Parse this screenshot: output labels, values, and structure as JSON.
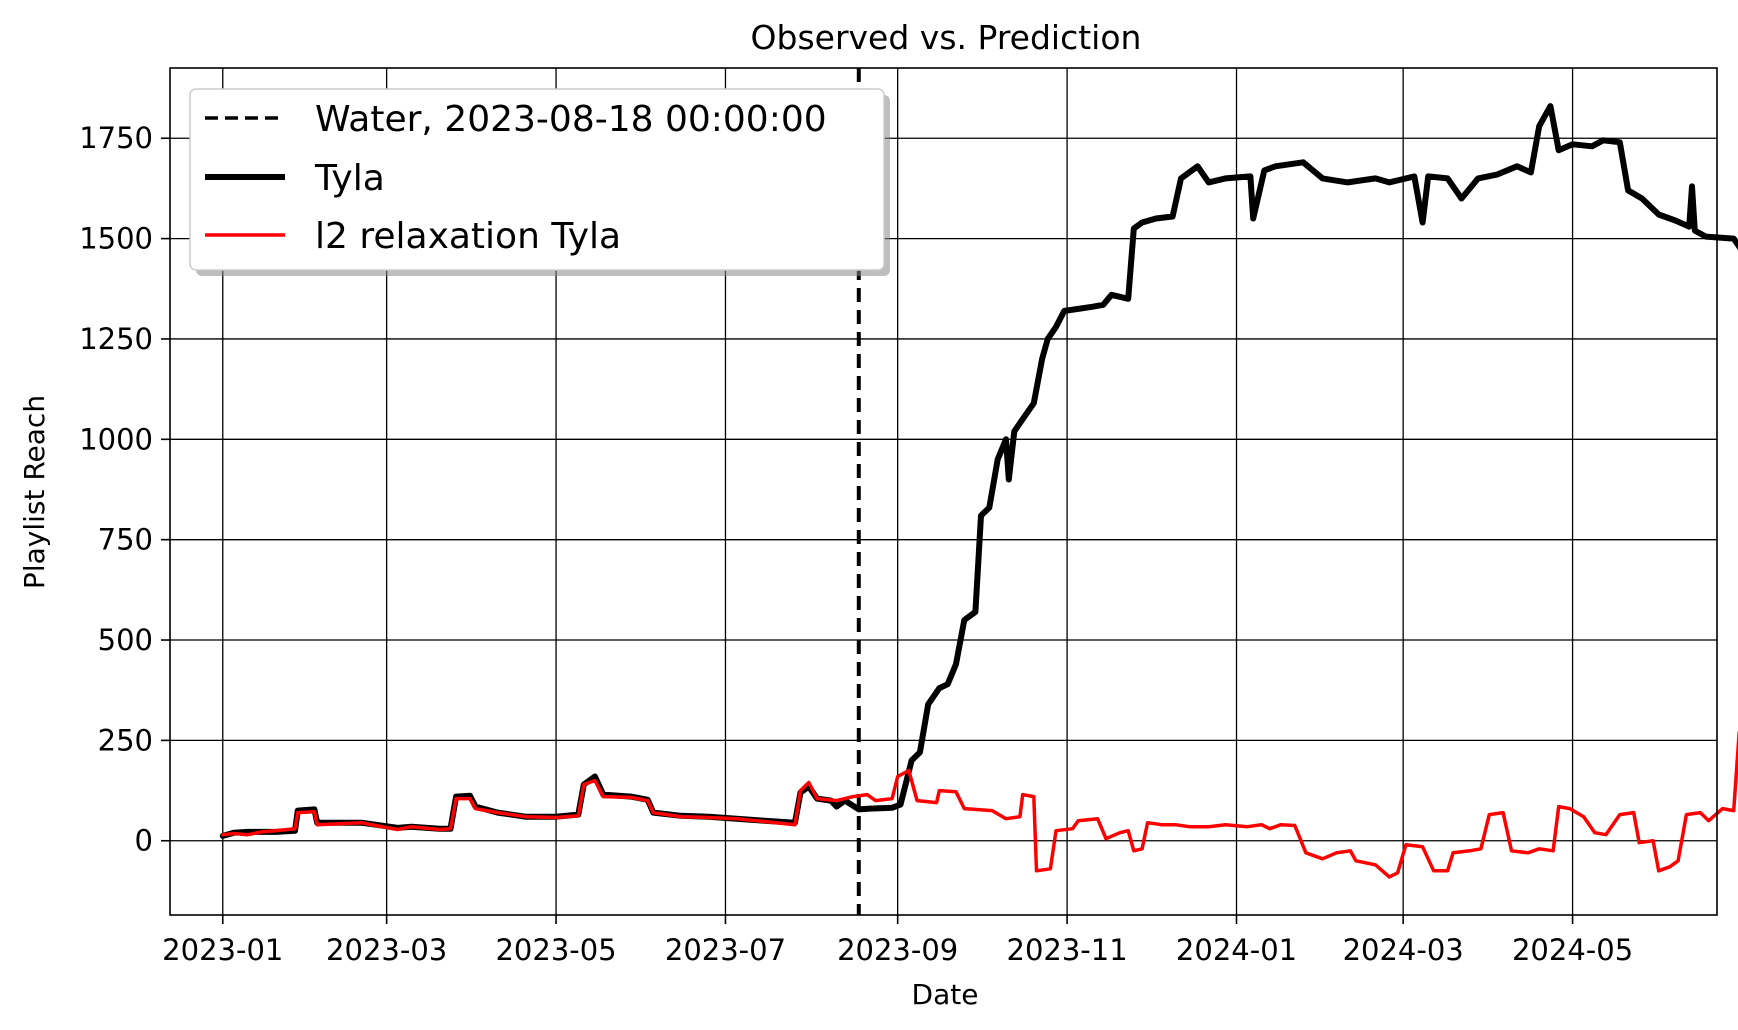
{
  "chart_data": {
    "type": "line",
    "title": "Observed vs. Prediction",
    "xlabel": "Date",
    "ylabel": "Playlist Reach",
    "xlim": [
      "2022-12-13",
      "2024-06-22"
    ],
    "ylim": [
      -185,
      1925
    ],
    "x_ticks": [
      "2023-01-01",
      "2023-03-01",
      "2023-05-01",
      "2023-07-01",
      "2023-09-01",
      "2023-11-01",
      "2024-01-01",
      "2024-03-01",
      "2024-05-01"
    ],
    "x_tick_labels": [
      "2023-01",
      "2023-03",
      "2023-05",
      "2023-07",
      "2023-09",
      "2023-11",
      "2024-01",
      "2024-03",
      "2024-05"
    ],
    "y_ticks": [
      0,
      250,
      500,
      750,
      1000,
      1250,
      1500,
      1750
    ],
    "y_tick_labels": [
      "0",
      "250",
      "500",
      "750",
      "1000",
      "1250",
      "1500",
      "1750"
    ],
    "grid": true,
    "legend_position": "top-left",
    "vline": {
      "name": "Water, 2023-08-18 00:00:00",
      "date": "2023-08-18",
      "color": "#000000",
      "style": "dashed"
    },
    "series": [
      {
        "name": "Tyla",
        "color": "#000000",
        "points": [
          [
            "2023-01-01",
            12
          ],
          [
            "2023-01-05",
            20
          ],
          [
            "2023-01-10",
            22
          ],
          [
            "2023-01-20",
            22
          ],
          [
            "2023-01-27",
            25
          ],
          [
            "2023-01-28",
            75
          ],
          [
            "2023-02-03",
            78
          ],
          [
            "2023-02-04",
            45
          ],
          [
            "2023-02-20",
            45
          ],
          [
            "2023-02-25",
            40
          ],
          [
            "2023-03-05",
            32
          ],
          [
            "2023-03-10",
            35
          ],
          [
            "2023-03-20",
            30
          ],
          [
            "2023-03-24",
            30
          ],
          [
            "2023-03-26",
            110
          ],
          [
            "2023-03-31",
            112
          ],
          [
            "2023-04-02",
            85
          ],
          [
            "2023-04-10",
            70
          ],
          [
            "2023-04-20",
            60
          ],
          [
            "2023-05-01",
            60
          ],
          [
            "2023-05-09",
            65
          ],
          [
            "2023-05-11",
            140
          ],
          [
            "2023-05-15",
            160
          ],
          [
            "2023-05-18",
            115
          ],
          [
            "2023-05-28",
            110
          ],
          [
            "2023-06-03",
            102
          ],
          [
            "2023-06-05",
            70
          ],
          [
            "2023-06-15",
            62
          ],
          [
            "2023-06-25",
            60
          ],
          [
            "2023-07-05",
            55
          ],
          [
            "2023-07-15",
            50
          ],
          [
            "2023-07-26",
            45
          ],
          [
            "2023-07-28",
            120
          ],
          [
            "2023-07-31",
            135
          ],
          [
            "2023-08-03",
            105
          ],
          [
            "2023-08-08",
            100
          ],
          [
            "2023-08-10",
            85
          ],
          [
            "2023-08-13",
            100
          ],
          [
            "2023-08-18",
            78
          ],
          [
            "2023-08-22",
            80
          ],
          [
            "2023-08-30",
            82
          ],
          [
            "2023-09-02",
            90
          ],
          [
            "2023-09-06",
            200
          ],
          [
            "2023-09-09",
            220
          ],
          [
            "2023-09-12",
            340
          ],
          [
            "2023-09-16",
            380
          ],
          [
            "2023-09-19",
            390
          ],
          [
            "2023-09-22",
            440
          ],
          [
            "2023-09-25",
            550
          ],
          [
            "2023-09-29",
            570
          ],
          [
            "2023-10-01",
            810
          ],
          [
            "2023-10-04",
            830
          ],
          [
            "2023-10-07",
            950
          ],
          [
            "2023-10-10",
            1000
          ],
          [
            "2023-10-11",
            900
          ],
          [
            "2023-10-13",
            1020
          ],
          [
            "2023-10-17",
            1060
          ],
          [
            "2023-10-20",
            1090
          ],
          [
            "2023-10-23",
            1200
          ],
          [
            "2023-10-25",
            1250
          ],
          [
            "2023-10-28",
            1280
          ],
          [
            "2023-10-31",
            1320
          ],
          [
            "2023-11-05",
            1325
          ],
          [
            "2023-11-10",
            1330
          ],
          [
            "2023-11-14",
            1335
          ],
          [
            "2023-11-17",
            1360
          ],
          [
            "2023-11-23",
            1350
          ],
          [
            "2023-11-25",
            1525
          ],
          [
            "2023-11-28",
            1540
          ],
          [
            "2023-12-03",
            1550
          ],
          [
            "2023-12-09",
            1555
          ],
          [
            "2023-12-12",
            1650
          ],
          [
            "2023-12-18",
            1680
          ],
          [
            "2023-12-22",
            1640
          ],
          [
            "2023-12-28",
            1650
          ],
          [
            "2024-01-06",
            1655
          ],
          [
            "2024-01-07",
            1550
          ],
          [
            "2024-01-11",
            1670
          ],
          [
            "2024-01-15",
            1680
          ],
          [
            "2024-01-25",
            1690
          ],
          [
            "2024-02-01",
            1650
          ],
          [
            "2024-02-10",
            1640
          ],
          [
            "2024-02-20",
            1650
          ],
          [
            "2024-02-25",
            1640
          ],
          [
            "2024-03-05",
            1655
          ],
          [
            "2024-03-08",
            1540
          ],
          [
            "2024-03-10",
            1655
          ],
          [
            "2024-03-17",
            1650
          ],
          [
            "2024-03-22",
            1600
          ],
          [
            "2024-03-28",
            1650
          ],
          [
            "2024-04-04",
            1660
          ],
          [
            "2024-04-11",
            1680
          ],
          [
            "2024-04-16",
            1665
          ],
          [
            "2024-04-19",
            1780
          ],
          [
            "2024-04-23",
            1830
          ],
          [
            "2024-04-26",
            1720
          ],
          [
            "2024-05-01",
            1735
          ],
          [
            "2024-05-08",
            1730
          ],
          [
            "2024-05-12",
            1745
          ],
          [
            "2024-05-18",
            1740
          ],
          [
            "2024-05-21",
            1620
          ],
          [
            "2024-05-26",
            1600
          ],
          [
            "2024-06-01",
            1560
          ],
          [
            "2024-06-07",
            1545
          ],
          [
            "2024-06-12",
            1530
          ],
          [
            "2024-06-13",
            1630
          ],
          [
            "2024-06-14",
            1520
          ],
          [
            "2024-06-18",
            1505
          ],
          [
            "2024-06-28",
            1500
          ],
          [
            "2024-07-01",
            1470
          ]
        ]
      },
      {
        "name": "l2 relaxation Tyla",
        "color": "#ff0000",
        "points": [
          [
            "2023-01-01",
            15
          ],
          [
            "2023-01-05",
            18
          ],
          [
            "2023-01-10",
            15
          ],
          [
            "2023-01-15",
            22
          ],
          [
            "2023-01-20",
            25
          ],
          [
            "2023-01-27",
            30
          ],
          [
            "2023-01-28",
            70
          ],
          [
            "2023-02-03",
            72
          ],
          [
            "2023-02-04",
            40
          ],
          [
            "2023-02-20",
            45
          ],
          [
            "2023-02-25",
            38
          ],
          [
            "2023-03-05",
            28
          ],
          [
            "2023-03-10",
            35
          ],
          [
            "2023-03-20",
            28
          ],
          [
            "2023-03-24",
            30
          ],
          [
            "2023-03-26",
            105
          ],
          [
            "2023-03-31",
            105
          ],
          [
            "2023-04-02",
            80
          ],
          [
            "2023-04-10",
            70
          ],
          [
            "2023-04-20",
            60
          ],
          [
            "2023-05-01",
            58
          ],
          [
            "2023-05-09",
            62
          ],
          [
            "2023-05-11",
            140
          ],
          [
            "2023-05-15",
            150
          ],
          [
            "2023-05-18",
            110
          ],
          [
            "2023-05-28",
            108
          ],
          [
            "2023-06-03",
            100
          ],
          [
            "2023-06-05",
            70
          ],
          [
            "2023-06-15",
            60
          ],
          [
            "2023-06-25",
            58
          ],
          [
            "2023-07-05",
            55
          ],
          [
            "2023-07-15",
            48
          ],
          [
            "2023-07-26",
            40
          ],
          [
            "2023-07-28",
            125
          ],
          [
            "2023-07-31",
            145
          ],
          [
            "2023-08-03",
            105
          ],
          [
            "2023-08-10",
            100
          ],
          [
            "2023-08-16",
            110
          ],
          [
            "2023-08-21",
            115
          ],
          [
            "2023-08-24",
            100
          ],
          [
            "2023-08-30",
            105
          ],
          [
            "2023-09-01",
            160
          ],
          [
            "2023-09-05",
            175
          ],
          [
            "2023-09-08",
            100
          ],
          [
            "2023-09-15",
            95
          ],
          [
            "2023-09-16",
            125
          ],
          [
            "2023-09-22",
            122
          ],
          [
            "2023-09-25",
            80
          ],
          [
            "2023-10-05",
            75
          ],
          [
            "2023-10-10",
            55
          ],
          [
            "2023-10-15",
            60
          ],
          [
            "2023-10-16",
            115
          ],
          [
            "2023-10-20",
            110
          ],
          [
            "2023-10-21",
            -75
          ],
          [
            "2023-10-26",
            -70
          ],
          [
            "2023-10-28",
            25
          ],
          [
            "2023-11-03",
            30
          ],
          [
            "2023-11-05",
            50
          ],
          [
            "2023-11-12",
            55
          ],
          [
            "2023-11-15",
            5
          ],
          [
            "2023-11-20",
            20
          ],
          [
            "2023-11-23",
            25
          ],
          [
            "2023-11-25",
            -25
          ],
          [
            "2023-11-28",
            -20
          ],
          [
            "2023-11-30",
            45
          ],
          [
            "2023-12-05",
            40
          ],
          [
            "2023-12-10",
            40
          ],
          [
            "2023-12-15",
            35
          ],
          [
            "2023-12-22",
            35
          ],
          [
            "2023-12-28",
            40
          ],
          [
            "2024-01-05",
            35
          ],
          [
            "2024-01-10",
            40
          ],
          [
            "2024-01-13",
            30
          ],
          [
            "2024-01-17",
            40
          ],
          [
            "2024-01-22",
            38
          ],
          [
            "2024-01-26",
            -30
          ],
          [
            "2024-02-01",
            -45
          ],
          [
            "2024-02-06",
            -30
          ],
          [
            "2024-02-11",
            -25
          ],
          [
            "2024-02-13",
            -50
          ],
          [
            "2024-02-20",
            -60
          ],
          [
            "2024-02-25",
            -90
          ],
          [
            "2024-02-28",
            -80
          ],
          [
            "2024-03-02",
            -10
          ],
          [
            "2024-03-08",
            -15
          ],
          [
            "2024-03-12",
            -75
          ],
          [
            "2024-03-17",
            -75
          ],
          [
            "2024-03-19",
            -30
          ],
          [
            "2024-03-25",
            -25
          ],
          [
            "2024-03-29",
            -20
          ],
          [
            "2024-04-01",
            65
          ],
          [
            "2024-04-06",
            70
          ],
          [
            "2024-04-09",
            -25
          ],
          [
            "2024-04-15",
            -30
          ],
          [
            "2024-04-19",
            -20
          ],
          [
            "2024-04-24",
            -25
          ],
          [
            "2024-04-26",
            85
          ],
          [
            "2024-04-30",
            80
          ],
          [
            "2024-05-05",
            60
          ],
          [
            "2024-05-09",
            20
          ],
          [
            "2024-05-13",
            15
          ],
          [
            "2024-05-18",
            65
          ],
          [
            "2024-05-23",
            70
          ],
          [
            "2024-05-25",
            -5
          ],
          [
            "2024-05-30",
            0
          ],
          [
            "2024-06-01",
            -75
          ],
          [
            "2024-06-05",
            -65
          ],
          [
            "2024-06-08",
            -50
          ],
          [
            "2024-06-11",
            65
          ],
          [
            "2024-06-16",
            70
          ],
          [
            "2024-06-19",
            50
          ],
          [
            "2024-06-24",
            80
          ],
          [
            "2024-06-28",
            75
          ],
          [
            "2024-06-30",
            270
          ],
          [
            "2024-07-02",
            275
          ]
        ]
      }
    ]
  }
}
